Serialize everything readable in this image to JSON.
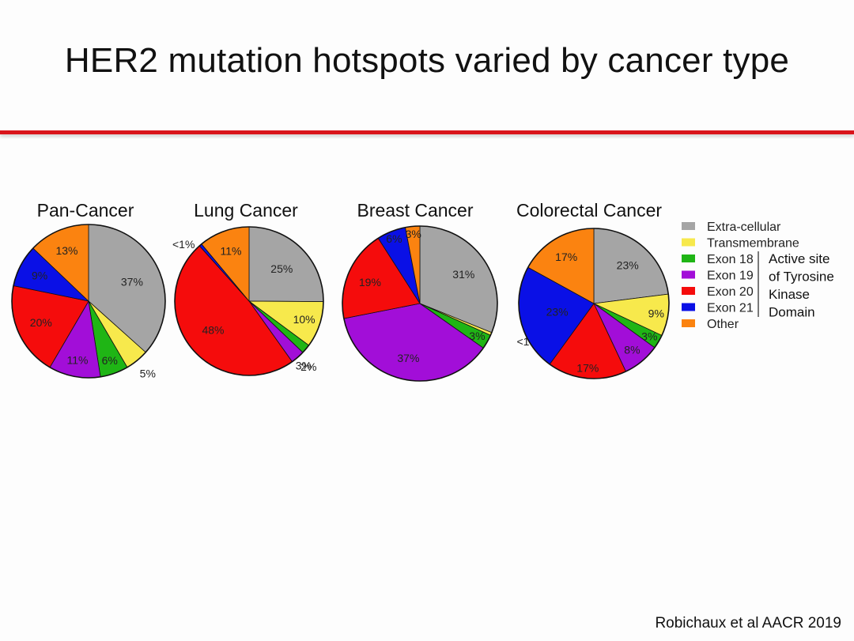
{
  "slide": {
    "title": "HER2 mutation hotspots varied by cancer type",
    "citation": "Robichaux et al AACR 2019"
  },
  "legend": [
    {
      "label": "Extra-cellular",
      "color": "#a5a5a5"
    },
    {
      "label": "Transmembrane",
      "color": "#f7e94c"
    },
    {
      "label": "Exon 18",
      "color": "#1fb515"
    },
    {
      "label": "Exon 19",
      "color": "#a20ed8"
    },
    {
      "label": "Exon 20",
      "color": "#f50c0c"
    },
    {
      "label": "Exon 21",
      "color": "#0a10e6"
    },
    {
      "label": "Other",
      "color": "#fb8310"
    }
  ],
  "bracket_lines": [
    "Active site",
    "of Tyrosine",
    "Kinase",
    "Domain"
  ],
  "chart_data": [
    {
      "type": "pie",
      "title": "Pan-Cancer",
      "slices": [
        {
          "category": "Extra-cellular",
          "value": 37,
          "label": "37%"
        },
        {
          "category": "Transmembrane",
          "value": 5,
          "label": "5%"
        },
        {
          "category": "Exon 18",
          "value": 6,
          "label": "6%"
        },
        {
          "category": "Exon 19",
          "value": 11,
          "label": "11%"
        },
        {
          "category": "Exon 20",
          "value": 20,
          "label": "20%"
        },
        {
          "category": "Exon 21",
          "value": 9,
          "label": "9%"
        },
        {
          "category": "Other",
          "value": 13,
          "label": "13%"
        }
      ]
    },
    {
      "type": "pie",
      "title": "Lung Cancer",
      "slices": [
        {
          "category": "Extra-cellular",
          "value": 25,
          "label": "25%"
        },
        {
          "category": "Transmembrane",
          "value": 10,
          "label": "10%"
        },
        {
          "category": "Exon 18",
          "value": 2,
          "label": "2%"
        },
        {
          "category": "Exon 19",
          "value": 3,
          "label": "3%"
        },
        {
          "category": "Exon 20",
          "value": 48,
          "label": "48%"
        },
        {
          "category": "Exon 21",
          "value": 0.6,
          "label": "<1%"
        },
        {
          "category": "Other",
          "value": 11,
          "label": "11%"
        }
      ]
    },
    {
      "type": "pie",
      "title": "Breast Cancer",
      "slices": [
        {
          "category": "Extra-cellular",
          "value": 31,
          "label": "31%"
        },
        {
          "category": "Transmembrane",
          "value": 0.6,
          "label": "<1%"
        },
        {
          "category": "Exon 18",
          "value": 3,
          "label": "3%"
        },
        {
          "category": "Exon 19",
          "value": 37,
          "label": "37%"
        },
        {
          "category": "Exon 20",
          "value": 19,
          "label": "19%"
        },
        {
          "category": "Exon 21",
          "value": 6,
          "label": "6%"
        },
        {
          "category": "Other",
          "value": 3,
          "label": "3%"
        }
      ]
    },
    {
      "type": "pie",
      "title": "Colorectal Cancer",
      "slices": [
        {
          "category": "Extra-cellular",
          "value": 23,
          "label": "23%"
        },
        {
          "category": "Transmembrane",
          "value": 9,
          "label": "9%"
        },
        {
          "category": "Exon 18",
          "value": 3,
          "label": "3%"
        },
        {
          "category": "Exon 19",
          "value": 8,
          "label": "8%"
        },
        {
          "category": "Exon 20",
          "value": 17,
          "label": "17%"
        },
        {
          "category": "Exon 21",
          "value": 23,
          "label": "23%"
        },
        {
          "category": "Other",
          "value": 17,
          "label": "17%"
        }
      ]
    }
  ]
}
